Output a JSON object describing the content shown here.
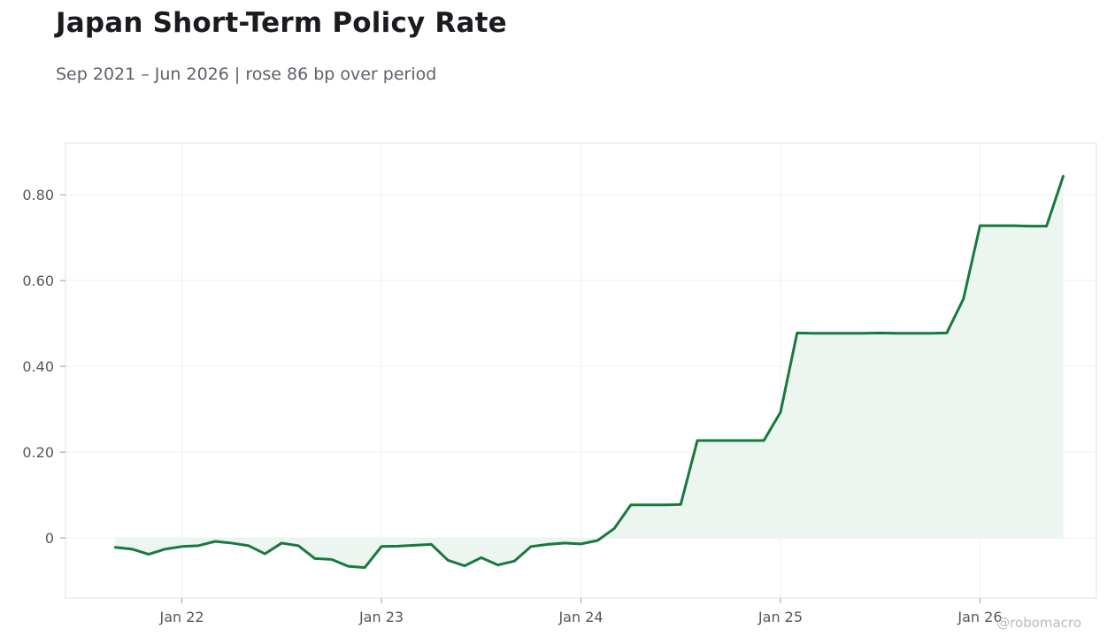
{
  "title": "Japan Short-Term Policy Rate",
  "subtitle": "Sep 2021 – Jun 2026 | rose 86 bp over period",
  "watermark": "@robomacro",
  "chart_data": {
    "type": "line",
    "title": "Japan Short-Term Policy Rate",
    "subtitle": "Sep 2021 – Jun 2026 | rose 86 bp over period",
    "xlabel": "",
    "ylabel": "",
    "x_ticks": [
      "Jan 22",
      "Jan 23",
      "Jan 24",
      "Jan 25",
      "Jan 26"
    ],
    "y_ticks": [
      "0",
      "0.20",
      "0.40",
      "0.60",
      "0.80"
    ],
    "ylim": [
      -0.14,
      0.92
    ],
    "xlim": [
      "2021-06-01",
      "2026-08-01"
    ],
    "grid": true,
    "legend": "none",
    "colors": {
      "line": "#177a3c",
      "fill": "#eaf4ee",
      "grid": "#efefef",
      "frame": "#e2e2e2"
    },
    "series": [
      {
        "x": [
          "2021-09",
          "2021-10",
          "2021-11",
          "2021-12",
          "2022-01",
          "2022-02",
          "2022-03",
          "2022-04",
          "2022-05",
          "2022-06",
          "2022-07",
          "2022-08",
          "2022-09",
          "2022-10",
          "2022-11",
          "2022-12",
          "2023-01",
          "2023-02",
          "2023-03",
          "2023-04",
          "2023-05",
          "2023-06",
          "2023-07",
          "2023-08",
          "2023-09",
          "2023-10",
          "2023-11",
          "2023-12",
          "2024-01",
          "2024-02",
          "2024-03",
          "2024-04",
          "2024-05",
          "2024-06",
          "2024-07",
          "2024-08",
          "2024-09",
          "2024-10",
          "2024-11",
          "2024-12",
          "2025-01",
          "2025-02",
          "2025-03",
          "2025-04",
          "2025-05",
          "2025-06",
          "2025-07",
          "2025-08",
          "2025-09",
          "2025-10",
          "2025-11",
          "2025-12",
          "2026-01",
          "2026-02",
          "2026-03",
          "2026-04",
          "2026-05",
          "2026-06"
        ],
        "values": [
          -0.022,
          -0.026,
          -0.038,
          -0.026,
          -0.02,
          -0.018,
          -0.008,
          -0.012,
          -0.018,
          -0.037,
          -0.012,
          -0.018,
          -0.048,
          -0.05,
          -0.066,
          -0.069,
          -0.02,
          -0.019,
          -0.017,
          -0.015,
          -0.052,
          -0.065,
          -0.046,
          -0.063,
          -0.054,
          -0.02,
          -0.015,
          -0.012,
          -0.014,
          -0.006,
          0.022,
          0.077,
          0.077,
          0.077,
          0.078,
          0.227,
          0.227,
          0.227,
          0.227,
          0.227,
          0.293,
          0.478,
          0.477,
          0.477,
          0.477,
          0.477,
          0.478,
          0.477,
          0.477,
          0.477,
          0.478,
          0.557,
          0.728,
          0.728,
          0.728,
          0.727,
          0.727,
          0.843
        ]
      }
    ]
  }
}
